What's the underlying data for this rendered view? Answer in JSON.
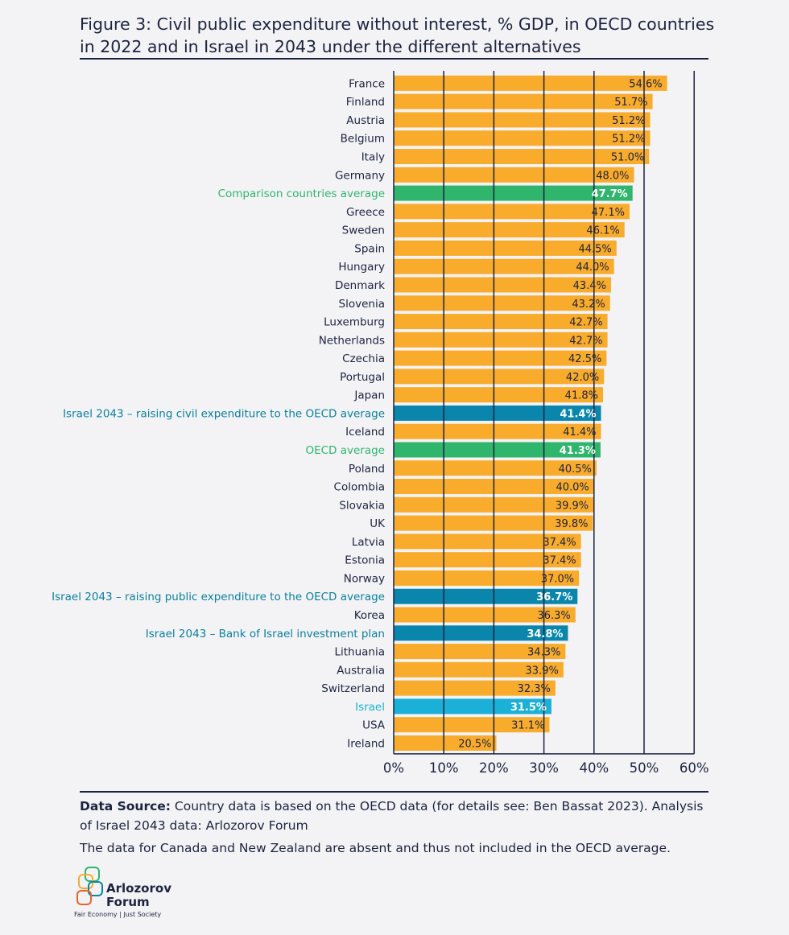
{
  "title": "Figure 3: Civil public expenditure without interest, % GDP, in OECD countries in 2022 and in Israel in 2043 under the different alternatives",
  "colors": {
    "country": "#f9ab2c",
    "comparison_avg": "#2fb56c",
    "israel_2043": "#0a86ad",
    "israel": "#1ab0d8",
    "grid": "#1c2340",
    "text_dark": "#1c2340",
    "label_green": "#2fb56c",
    "label_teal": "#0a7fa0",
    "label_cyan": "#1ab0d8"
  },
  "chart_data": {
    "type": "bar",
    "orientation": "horizontal",
    "xlim": [
      0,
      60
    ],
    "xticks": [
      0,
      10,
      20,
      30,
      40,
      50,
      60
    ],
    "xtick_labels": [
      "0%",
      "10%",
      "20%",
      "30%",
      "40%",
      "50%",
      "60%"
    ],
    "grid": "vertical",
    "bars": [
      {
        "label": "France",
        "value": 54.6,
        "display": "54.6%",
        "kind": "country"
      },
      {
        "label": "Finland",
        "value": 51.7,
        "display": "51.7%",
        "kind": "country"
      },
      {
        "label": "Austria",
        "value": 51.2,
        "display": "51.2%",
        "kind": "country"
      },
      {
        "label": "Belgium",
        "value": 51.2,
        "display": "51.2%",
        "kind": "country"
      },
      {
        "label": "Italy",
        "value": 51.0,
        "display": "51.0%",
        "kind": "country"
      },
      {
        "label": "Germany",
        "value": 48.0,
        "display": "48.0%",
        "kind": "country"
      },
      {
        "label": "Comparison countries average",
        "value": 47.7,
        "display": "47.7%",
        "kind": "comparison_avg"
      },
      {
        "label": "Greece",
        "value": 47.1,
        "display": "47.1%",
        "kind": "country"
      },
      {
        "label": "Sweden",
        "value": 46.1,
        "display": "46.1%",
        "kind": "country"
      },
      {
        "label": "Spain",
        "value": 44.5,
        "display": "44.5%",
        "kind": "country"
      },
      {
        "label": "Hungary",
        "value": 44.0,
        "display": "44.0%",
        "kind": "country"
      },
      {
        "label": "Denmark",
        "value": 43.4,
        "display": "43.4%",
        "kind": "country"
      },
      {
        "label": "Slovenia",
        "value": 43.2,
        "display": "43.2%",
        "kind": "country"
      },
      {
        "label": "Luxemburg",
        "value": 42.7,
        "display": "42.7%",
        "kind": "country"
      },
      {
        "label": "Netherlands",
        "value": 42.7,
        "display": "42.7%",
        "kind": "country"
      },
      {
        "label": "Czechia",
        "value": 42.5,
        "display": "42.5%",
        "kind": "country"
      },
      {
        "label": "Portugal",
        "value": 42.0,
        "display": "42.0%",
        "kind": "country"
      },
      {
        "label": "Japan",
        "value": 41.8,
        "display": "41.8%",
        "kind": "country"
      },
      {
        "label": "Israel 2043 – raising civil expenditure to the OECD average",
        "value": 41.4,
        "display": "41.4%",
        "kind": "israel_2043"
      },
      {
        "label": "Iceland",
        "value": 41.4,
        "display": "41.4%",
        "kind": "country"
      },
      {
        "label": "OECD average",
        "value": 41.3,
        "display": "41.3%",
        "kind": "comparison_avg"
      },
      {
        "label": "Poland",
        "value": 40.5,
        "display": "40.5%",
        "kind": "country"
      },
      {
        "label": "Colombia",
        "value": 40.0,
        "display": "40.0%",
        "kind": "country"
      },
      {
        "label": "Slovakia",
        "value": 39.9,
        "display": "39.9%",
        "kind": "country"
      },
      {
        "label": "UK",
        "value": 39.8,
        "display": "39.8%",
        "kind": "country"
      },
      {
        "label": "Latvia",
        "value": 37.4,
        "display": "37.4%",
        "kind": "country"
      },
      {
        "label": "Estonia",
        "value": 37.4,
        "display": "37.4%",
        "kind": "country"
      },
      {
        "label": "Norway",
        "value": 37.0,
        "display": "37.0%",
        "kind": "country"
      },
      {
        "label": "Israel 2043 – raising public expenditure to the OECD average",
        "value": 36.7,
        "display": "36.7%",
        "kind": "israel_2043"
      },
      {
        "label": "Korea",
        "value": 36.3,
        "display": "36.3%",
        "kind": "country"
      },
      {
        "label": "Israel 2043 – Bank of Israel investment plan",
        "value": 34.8,
        "display": "34.8%",
        "kind": "israel_2043"
      },
      {
        "label": "Lithuania",
        "value": 34.3,
        "display": "34.3%",
        "kind": "country"
      },
      {
        "label": "Australia",
        "value": 33.9,
        "display": "33.9%",
        "kind": "country"
      },
      {
        "label": "Switzerland",
        "value": 32.3,
        "display": "32.3%",
        "kind": "country"
      },
      {
        "label": "Israel",
        "value": 31.5,
        "display": "31.5%",
        "kind": "israel"
      },
      {
        "label": "USA",
        "value": 31.1,
        "display": "31.1%",
        "kind": "country"
      },
      {
        "label": "Ireland",
        "value": 20.5,
        "display": "20.5%",
        "kind": "country"
      }
    ]
  },
  "footer": {
    "source_label": "Data Source:",
    "source_text": " Country data is based on the OECD data (for details see: Ben Bassat 2023). Analysis of Israel 2043 data: Arlozorov Forum",
    "note": "The data for Canada and New Zealand are absent and thus not included in the OECD average."
  },
  "logo": {
    "name_line1": "Arlozorov",
    "name_line2": "Forum",
    "tagline": "Fair Economy | Just Society"
  }
}
